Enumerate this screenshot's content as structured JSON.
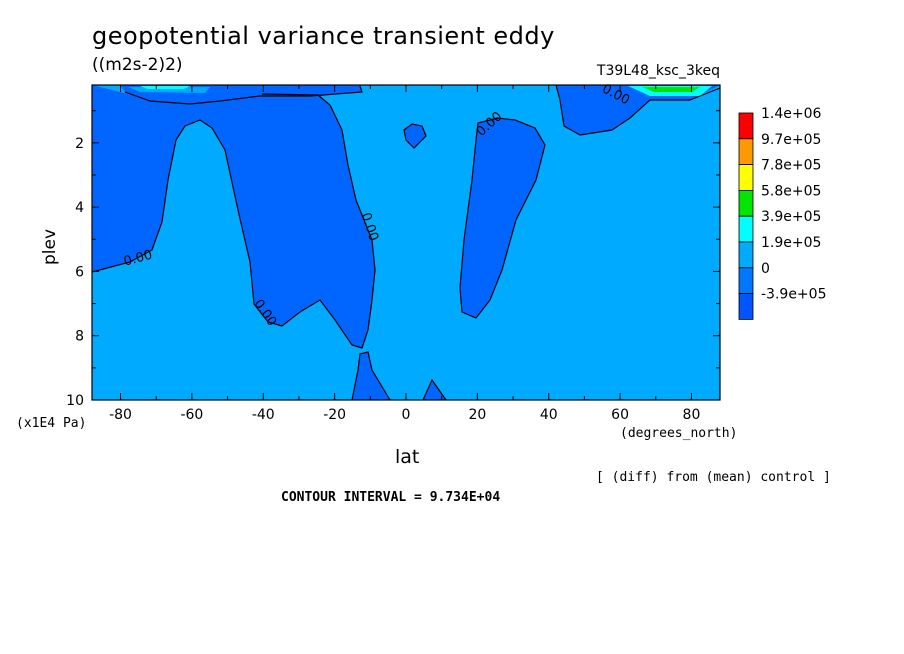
{
  "chart_data": {
    "type": "contour",
    "title": "geopotential variance transient eddy",
    "units": "((m2s-2)2)",
    "experiment": "T39L48_ksc_3keq",
    "xlabel": "lat",
    "x_units": "(degrees_north)",
    "ylabel": "plev",
    "y_units": "(x1E4 Pa)",
    "xlim": [
      -88,
      88
    ],
    "ylim": [
      10,
      0.2
    ],
    "x_ticks": [
      "-80",
      "-60",
      "-40",
      "-20",
      "0",
      "20",
      "40",
      "60",
      "80"
    ],
    "y_ticks": [
      "2",
      "4",
      "6",
      "8",
      "10"
    ],
    "x_tick_values": [
      -80,
      -60,
      -40,
      -20,
      0,
      20,
      40,
      60,
      80
    ],
    "y_tick_values": [
      2,
      4,
      6,
      8,
      10
    ],
    "legend": {
      "levels": [
        "1.4e+06",
        "9.7e+05",
        "7.8e+05",
        "5.8e+05",
        "3.9e+05",
        "1.9e+05",
        "0",
        "-3.9e+05"
      ],
      "colors": [
        "#ff0000",
        "#ff9900",
        "#ffff00",
        "#00e600",
        "#00ffff",
        "#00aaff",
        "#0077ff",
        "#0055ff"
      ]
    },
    "contour_labels": [
      "0.00",
      "0.00",
      "0.00",
      "0.00",
      "0.00"
    ],
    "note": "[ (diff) from (mean) control ]",
    "contour_interval": "CONTOUR INTERVAL = 9.734E+04",
    "background_color": "#00aaff",
    "negative_color": "#0066ff"
  }
}
